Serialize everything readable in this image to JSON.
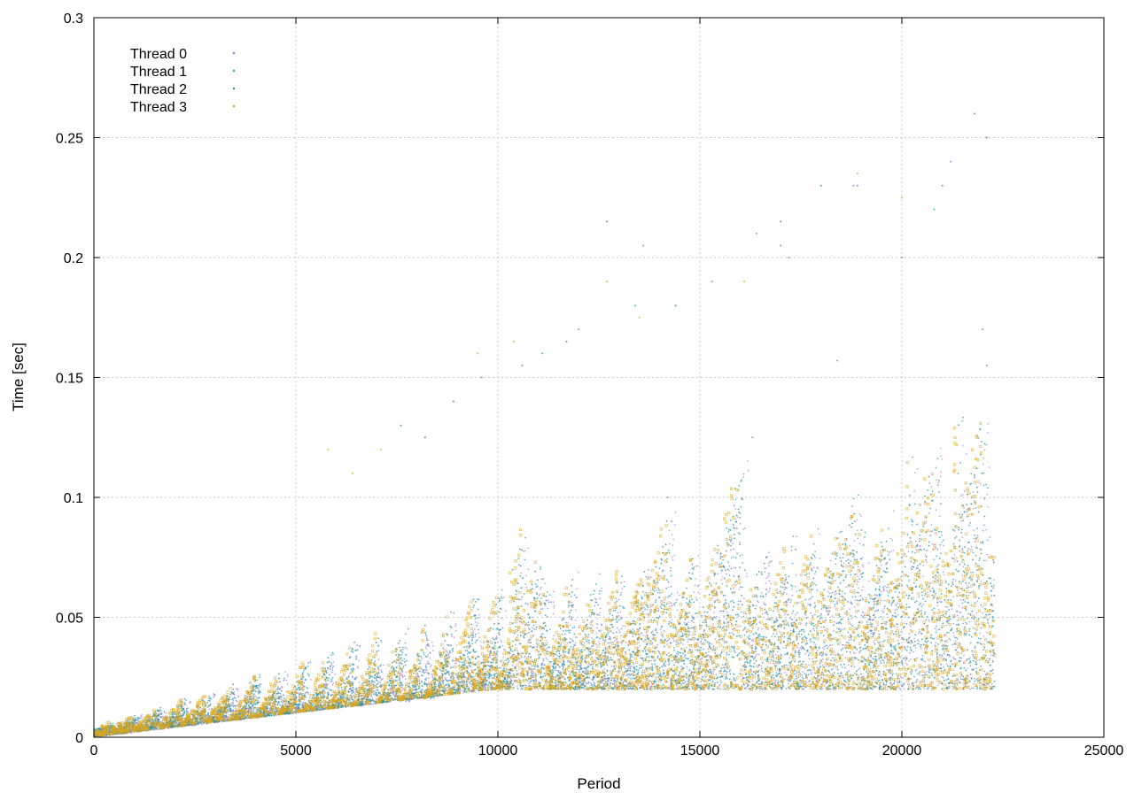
{
  "chart_data": {
    "type": "scatter",
    "title": "",
    "xlabel": "Period",
    "ylabel": "Time [sec]",
    "xlim": [
      0,
      25000
    ],
    "ylim": [
      0,
      0.3
    ],
    "xticks": [
      0,
      5000,
      10000,
      15000,
      20000,
      25000
    ],
    "xtick_labels": [
      "0",
      "5000",
      "10000",
      "15000",
      "20000",
      "25000"
    ],
    "yticks": [
      0,
      0.05,
      0.1,
      0.15,
      0.2,
      0.25,
      0.3
    ],
    "ytick_labels": [
      "0",
      "0.05",
      "0.1",
      "0.15",
      "0.2",
      "0.25",
      "0.3"
    ],
    "grid": true,
    "legend_position": "top-left",
    "x_max_data": 22300,
    "series": [
      {
        "name": "Thread 0",
        "color": "#9b6fd4",
        "marker": "dot",
        "x": [
          12000,
          13600,
          14200,
          14300,
          16300,
          17200,
          18400,
          18800,
          20000,
          21200,
          22000,
          22100
        ],
        "y": [
          0.17,
          0.205,
          0.1,
          0.09,
          0.125,
          0.2,
          0.157,
          0.23,
          0.2,
          0.24,
          0.17,
          0.155
        ]
      },
      {
        "name": "Thread 1",
        "color": "#29a3c2",
        "marker": "x",
        "x": [
          9600,
          10600,
          11100,
          13400,
          15300,
          16400,
          17000,
          18900,
          20800,
          21800
        ],
        "y": [
          0.15,
          0.155,
          0.16,
          0.18,
          0.19,
          0.21,
          0.205,
          0.23,
          0.22,
          0.26
        ]
      },
      {
        "name": "Thread 2",
        "color": "#2f8a8a",
        "marker": "cross",
        "x": [
          7600,
          8200,
          8900,
          11700,
          12700,
          14400,
          17000,
          18000,
          21000,
          22100
        ],
        "y": [
          0.13,
          0.125,
          0.14,
          0.165,
          0.215,
          0.18,
          0.215,
          0.23,
          0.23,
          0.25
        ]
      },
      {
        "name": "Thread 3",
        "color": "#d9a520",
        "marker": "square",
        "x": [
          5800,
          6400,
          7100,
          9500,
          10400,
          12700,
          13500,
          16100,
          18900,
          20000
        ],
        "y": [
          0.12,
          0.11,
          0.12,
          0.16,
          0.165,
          0.19,
          0.175,
          0.19,
          0.235,
          0.225
        ]
      }
    ],
    "band_model": {
      "description": "dense point cloud per thread",
      "linear_floor_slope": 2e-06,
      "saturation_start": 10000
    }
  }
}
